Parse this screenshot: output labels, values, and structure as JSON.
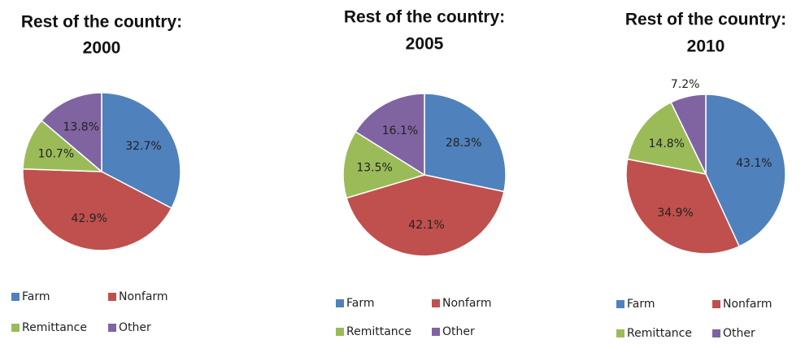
{
  "chart_data": [
    {
      "type": "pie",
      "title": "Rest of the country:",
      "subtitle": "2000",
      "categories": [
        "Farm",
        "Nonfarm",
        "Remittance",
        "Other"
      ],
      "values": [
        32.7,
        42.9,
        10.7,
        13.8
      ],
      "value_labels": [
        "32.7%",
        "42.9%",
        "10.7%",
        "13.8%"
      ],
      "colors": [
        "#4f81bd",
        "#c0504d",
        "#9bbb59",
        "#8064a2"
      ]
    },
    {
      "type": "pie",
      "title": "Rest of the country:",
      "subtitle": "2005",
      "categories": [
        "Farm",
        "Nonfarm",
        "Remittance",
        "Other"
      ],
      "values": [
        28.3,
        42.1,
        13.5,
        16.1
      ],
      "value_labels": [
        "28.3%",
        "42.1%",
        "13.5%",
        "16.1%"
      ],
      "colors": [
        "#4f81bd",
        "#c0504d",
        "#9bbb59",
        "#8064a2"
      ]
    },
    {
      "type": "pie",
      "title": "Rest of the country:",
      "subtitle": "2010",
      "categories": [
        "Farm",
        "Nonfarm",
        "Remittance",
        "Other"
      ],
      "values": [
        43.1,
        34.9,
        14.8,
        7.2
      ],
      "value_labels": [
        "43.1%",
        "34.9%",
        "14.8%",
        "7.2%"
      ],
      "colors": [
        "#4f81bd",
        "#c0504d",
        "#9bbb59",
        "#8064a2"
      ]
    }
  ]
}
